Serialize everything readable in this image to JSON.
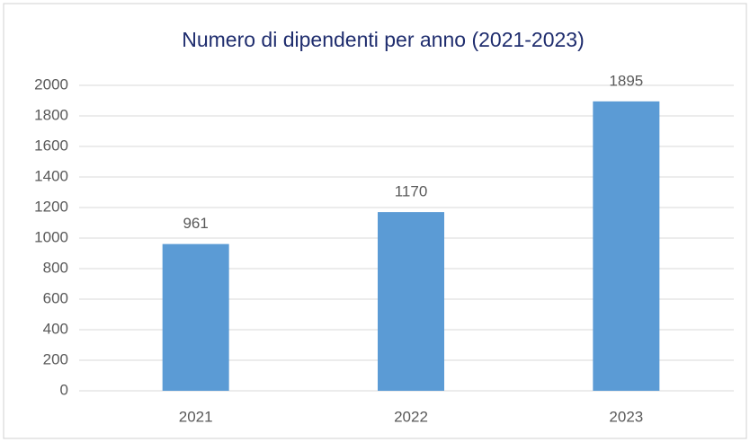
{
  "chart_data": {
    "type": "bar",
    "title": "Numero di dipendenti per anno (2021-2023)",
    "categories": [
      "2021",
      "2022",
      "2023"
    ],
    "values": [
      961,
      1170,
      1895
    ],
    "color": "#5b9bd5",
    "ylim": [
      0,
      2000
    ],
    "yticks": [
      0,
      200,
      400,
      600,
      800,
      1000,
      1200,
      1400,
      1600,
      1800,
      2000
    ],
    "grid": true
  }
}
